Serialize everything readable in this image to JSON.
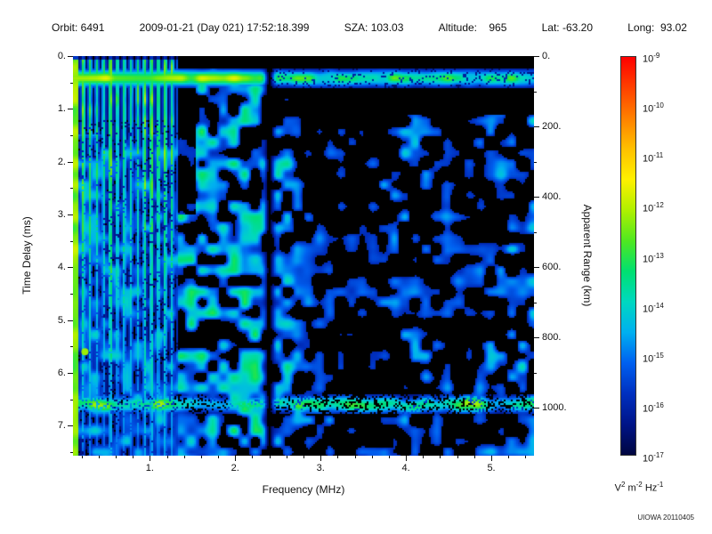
{
  "header": {
    "fields": [
      "Orbit: 6491",
      "2009-01-21 (Day 021) 17:52:18.399",
      "SZA: 103.03",
      "Altitude:    965",
      "Lat: -63.20",
      "Long:  93.02"
    ]
  },
  "watermark": "UIOWA 20110405",
  "chart_data": {
    "type": "heatmap",
    "description": "Radar sounder ionogram spectrogram: received spectral density versus frequency and time delay",
    "xlabel": "Frequency (MHz)",
    "ylabel_left": "Time Delay (ms)",
    "ylabel_right": "Apparent Range (km)",
    "x_range_mhz": [
      0.1,
      5.5
    ],
    "y_range_ms": [
      0,
      7.57
    ],
    "km_per_ms": 150,
    "x_ticks": {
      "values": [
        1,
        2,
        3,
        4,
        5
      ],
      "labels": [
        "1.",
        "2.",
        "3.",
        "4.",
        "5."
      ]
    },
    "y_left_ticks": {
      "values": [
        0,
        1,
        2,
        3,
        4,
        5,
        6,
        7
      ],
      "labels": [
        "0.",
        "1.",
        "2.",
        "3.",
        "4.",
        "5.",
        "6.",
        "7."
      ]
    },
    "y_right_ticks": {
      "values_km": [
        0,
        200,
        400,
        600,
        800,
        1000
      ],
      "labels": [
        "0.",
        "200.",
        "400.",
        "600.",
        "800.",
        "1000."
      ]
    },
    "colorbar": {
      "scale": "log",
      "tick_labels": [
        "10^-9",
        "10^-10",
        "10^-11",
        "10^-12",
        "10^-13",
        "10^-14",
        "10^-15",
        "10^-16",
        "10^-17"
      ],
      "unit": "V^2 m^-2 Hz^-1",
      "colors_top_to_bottom": [
        "#ff0000",
        "#ff4000",
        "#ff8000",
        "#ffc000",
        "#fff000",
        "#b0f000",
        "#50e820",
        "#00e070",
        "#00d8c0",
        "#00b0f0",
        "#0060f0",
        "#0030c0",
        "#001488",
        "#000640"
      ]
    },
    "features": {
      "background": "#000000",
      "plasma_lines": {
        "freq_start_mhz": 0.1,
        "freq_end_mhz": 1.33,
        "spacing_mhz": 0.08,
        "note": "bright green vertical electron plasma harmonic lines, fading with delay"
      },
      "echo_bands": [
        {
          "delay_ms": 0.42,
          "sigma_ms": 0.11,
          "note": "bright horizontal echo band across all frequencies"
        },
        {
          "delay_ms": 6.6,
          "sigma_ms": 0.12,
          "note": "speckled cyan band near 1000 km apparent range"
        }
      ],
      "gap_freq_mhz": 2.4,
      "bright_spot": {
        "freq_mhz": 0.24,
        "delay_ms": 5.6
      },
      "diffuse_noise": "blue speckle, dense between 1.3 and 2.4 MHz, patchy vertical columns above 2.4 MHz"
    }
  }
}
